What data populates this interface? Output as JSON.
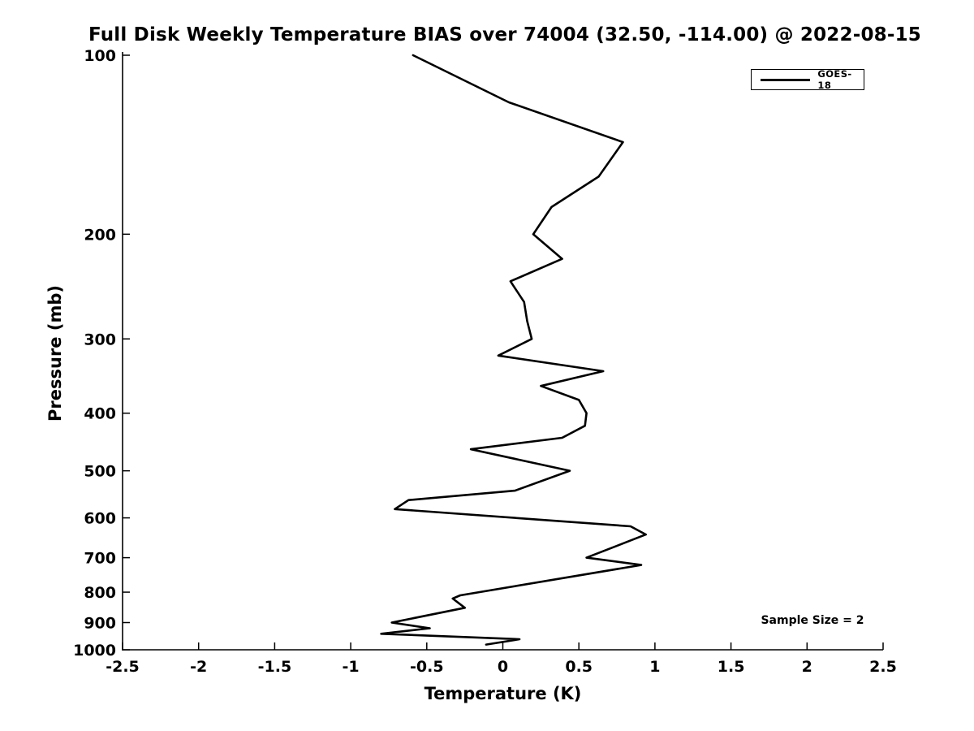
{
  "title": "Full Disk Weekly Temperature BIAS over 74004 (32.50, -114.00) @ 2022-08-15",
  "annotations": {
    "sample_size": "Sample Size = 2"
  },
  "legend": {
    "position": "upper right",
    "entries": [
      {
        "label": "GOES-18",
        "color": "#000000",
        "line_style": "solid"
      }
    ]
  },
  "colors": {
    "line": "#000000",
    "background": "#ffffff",
    "text": "#000000"
  },
  "chart_data": {
    "type": "line",
    "title": "Full Disk Weekly Temperature BIAS over 74004 (32.50, -114.00) @ 2022-08-15",
    "xlabel": "Temperature (K)",
    "ylabel": "Pressure (mb)",
    "xlim": [
      -2.5,
      2.5
    ],
    "ylim": [
      100,
      1000
    ],
    "y_scale": "log",
    "y_inverted": true,
    "grid": false,
    "legend_position": "upper right",
    "x_ticks": [
      {
        "value": -2.5,
        "label": "-2.5"
      },
      {
        "value": -2,
        "label": "-2"
      },
      {
        "value": -1.5,
        "label": "-1.5"
      },
      {
        "value": -1,
        "label": "-1"
      },
      {
        "value": -0.5,
        "label": "-0.5"
      },
      {
        "value": 0,
        "label": "0"
      },
      {
        "value": 0.5,
        "label": "0.5"
      },
      {
        "value": 1,
        "label": "1"
      },
      {
        "value": 1.5,
        "label": "1.5"
      },
      {
        "value": 2,
        "label": "2"
      },
      {
        "value": 2.5,
        "label": "2.5"
      }
    ],
    "y_ticks": [
      {
        "value": 100,
        "label": "100"
      },
      {
        "value": 200,
        "label": "200"
      },
      {
        "value": 300,
        "label": "300"
      },
      {
        "value": 400,
        "label": "400"
      },
      {
        "value": 500,
        "label": "500"
      },
      {
        "value": 600,
        "label": "600"
      },
      {
        "value": 700,
        "label": "700"
      },
      {
        "value": 800,
        "label": "800"
      },
      {
        "value": 900,
        "label": "900"
      },
      {
        "value": 1000,
        "label": "1000"
      }
    ],
    "series": [
      {
        "name": "GOES-18",
        "color": "#000000",
        "pressure_mb": [
          100,
          120,
          140,
          160,
          180,
          200,
          220,
          240,
          260,
          280,
          300,
          320,
          340,
          360,
          380,
          400,
          420,
          440,
          460,
          500,
          540,
          560,
          580,
          620,
          640,
          700,
          720,
          810,
          820,
          850,
          900,
          920,
          940,
          960,
          980
        ],
        "bias_k": [
          -0.59,
          0.04,
          0.79,
          0.63,
          0.32,
          0.2,
          0.39,
          0.05,
          0.14,
          0.16,
          0.19,
          -0.03,
          0.66,
          0.25,
          0.5,
          0.55,
          0.54,
          0.39,
          -0.21,
          0.44,
          0.08,
          -0.62,
          -0.71,
          0.84,
          0.94,
          0.55,
          0.91,
          -0.28,
          -0.33,
          -0.25,
          -0.73,
          -0.48,
          -0.8,
          0.11,
          -0.11
        ]
      }
    ],
    "annotations": [
      {
        "text": "Sample Size = 2",
        "approx_x": 1.02,
        "approx_pressure": 890
      }
    ]
  }
}
